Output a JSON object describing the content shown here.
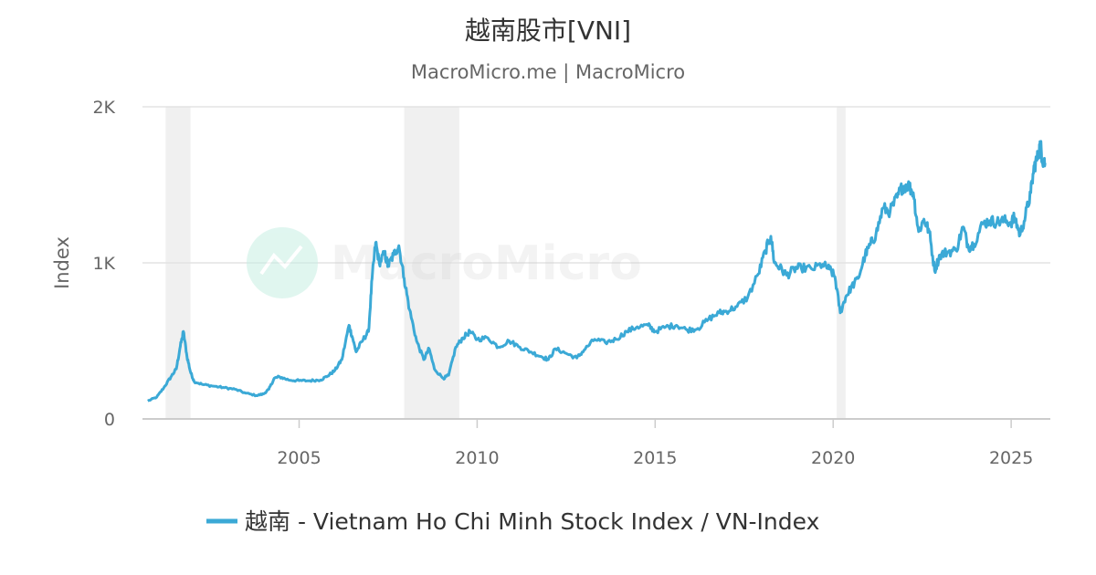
{
  "chart_data": {
    "type": "line",
    "title": "越南股市[VNI]",
    "subtitle": "MacroMicro.me | MacroMicro",
    "ylabel": "Index",
    "xlabel": "",
    "x_range": [
      2000.6,
      2026.1
    ],
    "ylim": [
      0,
      2000
    ],
    "y_ticks": [
      {
        "value": 0,
        "label": "0"
      },
      {
        "value": 1000,
        "label": "1K"
      },
      {
        "value": 2000,
        "label": "2K"
      }
    ],
    "x_ticks": [
      {
        "value": 2005,
        "label": "2005"
      },
      {
        "value": 2010,
        "label": "2010"
      },
      {
        "value": 2015,
        "label": "2015"
      },
      {
        "value": 2020,
        "label": "2020"
      },
      {
        "value": 2025,
        "label": "2025"
      }
    ],
    "grid": true,
    "legend_position": "bottom-center",
    "recession_bands": [
      [
        2001.25,
        2001.95
      ],
      [
        2007.95,
        2009.5
      ],
      [
        2020.1,
        2020.35
      ]
    ],
    "watermark": "MacroMicro",
    "series": [
      {
        "name": "越南 - Vietnam Ho Chi Minh Stock Index / VN-Index",
        "color": "#3ba9d6",
        "points": [
          [
            2000.75,
            115
          ],
          [
            2001.0,
            140
          ],
          [
            2001.2,
            200
          ],
          [
            2001.4,
            270
          ],
          [
            2001.55,
            320
          ],
          [
            2001.65,
            450
          ],
          [
            2001.75,
            560
          ],
          [
            2001.85,
            400
          ],
          [
            2001.95,
            300
          ],
          [
            2002.05,
            240
          ],
          [
            2002.3,
            220
          ],
          [
            2002.6,
            210
          ],
          [
            2002.9,
            200
          ],
          [
            2003.2,
            190
          ],
          [
            2003.5,
            165
          ],
          [
            2003.8,
            150
          ],
          [
            2004.0,
            160
          ],
          [
            2004.15,
            190
          ],
          [
            2004.3,
            260
          ],
          [
            2004.45,
            270
          ],
          [
            2004.7,
            250
          ],
          [
            2005.0,
            245
          ],
          [
            2005.3,
            245
          ],
          [
            2005.6,
            250
          ],
          [
            2005.8,
            275
          ],
          [
            2006.0,
            310
          ],
          [
            2006.2,
            380
          ],
          [
            2006.4,
            600
          ],
          [
            2006.5,
            520
          ],
          [
            2006.6,
            430
          ],
          [
            2006.8,
            510
          ],
          [
            2006.95,
            560
          ],
          [
            2007.05,
            900
          ],
          [
            2007.15,
            1130
          ],
          [
            2007.25,
            1000
          ],
          [
            2007.4,
            1060
          ],
          [
            2007.5,
            980
          ],
          [
            2007.65,
            1050
          ],
          [
            2007.8,
            1110
          ],
          [
            2007.95,
            900
          ],
          [
            2008.1,
            700
          ],
          [
            2008.3,
            500
          ],
          [
            2008.5,
            380
          ],
          [
            2008.65,
            450
          ],
          [
            2008.8,
            320
          ],
          [
            2009.05,
            260
          ],
          [
            2009.2,
            280
          ],
          [
            2009.4,
            460
          ],
          [
            2009.6,
            520
          ],
          [
            2009.8,
            560
          ],
          [
            2010.0,
            510
          ],
          [
            2010.3,
            520
          ],
          [
            2010.6,
            460
          ],
          [
            2010.9,
            500
          ],
          [
            2011.2,
            460
          ],
          [
            2011.5,
            430
          ],
          [
            2011.8,
            400
          ],
          [
            2012.0,
            380
          ],
          [
            2012.2,
            450
          ],
          [
            2012.5,
            420
          ],
          [
            2012.8,
            390
          ],
          [
            2013.0,
            440
          ],
          [
            2013.3,
            510
          ],
          [
            2013.6,
            490
          ],
          [
            2013.9,
            510
          ],
          [
            2014.2,
            560
          ],
          [
            2014.5,
            590
          ],
          [
            2014.8,
            600
          ],
          [
            2015.0,
            560
          ],
          [
            2015.3,
            590
          ],
          [
            2015.6,
            600
          ],
          [
            2015.9,
            570
          ],
          [
            2016.2,
            580
          ],
          [
            2016.5,
            640
          ],
          [
            2016.8,
            680
          ],
          [
            2017.0,
            690
          ],
          [
            2017.3,
            720
          ],
          [
            2017.6,
            780
          ],
          [
            2017.9,
            930
          ],
          [
            2018.1,
            1080
          ],
          [
            2018.25,
            1170
          ],
          [
            2018.35,
            1000
          ],
          [
            2018.5,
            970
          ],
          [
            2018.7,
            920
          ],
          [
            2018.9,
            960
          ],
          [
            2019.1,
            970
          ],
          [
            2019.4,
            960
          ],
          [
            2019.7,
            990
          ],
          [
            2019.9,
            960
          ],
          [
            2020.05,
            910
          ],
          [
            2020.2,
            680
          ],
          [
            2020.35,
            780
          ],
          [
            2020.5,
            840
          ],
          [
            2020.7,
            900
          ],
          [
            2020.9,
            1050
          ],
          [
            2021.05,
            1120
          ],
          [
            2021.2,
            1180
          ],
          [
            2021.4,
            1350
          ],
          [
            2021.6,
            1330
          ],
          [
            2021.8,
            1420
          ],
          [
            2021.95,
            1490
          ],
          [
            2022.1,
            1500
          ],
          [
            2022.25,
            1450
          ],
          [
            2022.4,
            1200
          ],
          [
            2022.55,
            1280
          ],
          [
            2022.7,
            1200
          ],
          [
            2022.85,
            950
          ],
          [
            2023.0,
            1050
          ],
          [
            2023.2,
            1070
          ],
          [
            2023.45,
            1080
          ],
          [
            2023.65,
            1230
          ],
          [
            2023.8,
            1100
          ],
          [
            2023.95,
            1120
          ],
          [
            2024.2,
            1250
          ],
          [
            2024.4,
            1270
          ],
          [
            2024.6,
            1260
          ],
          [
            2024.8,
            1270
          ],
          [
            2025.0,
            1260
          ],
          [
            2025.1,
            1290
          ],
          [
            2025.25,
            1180
          ],
          [
            2025.4,
            1300
          ],
          [
            2025.55,
            1450
          ],
          [
            2025.65,
            1620
          ],
          [
            2025.75,
            1680
          ],
          [
            2025.82,
            1760
          ],
          [
            2025.88,
            1660
          ],
          [
            2025.95,
            1640
          ]
        ]
      }
    ]
  }
}
